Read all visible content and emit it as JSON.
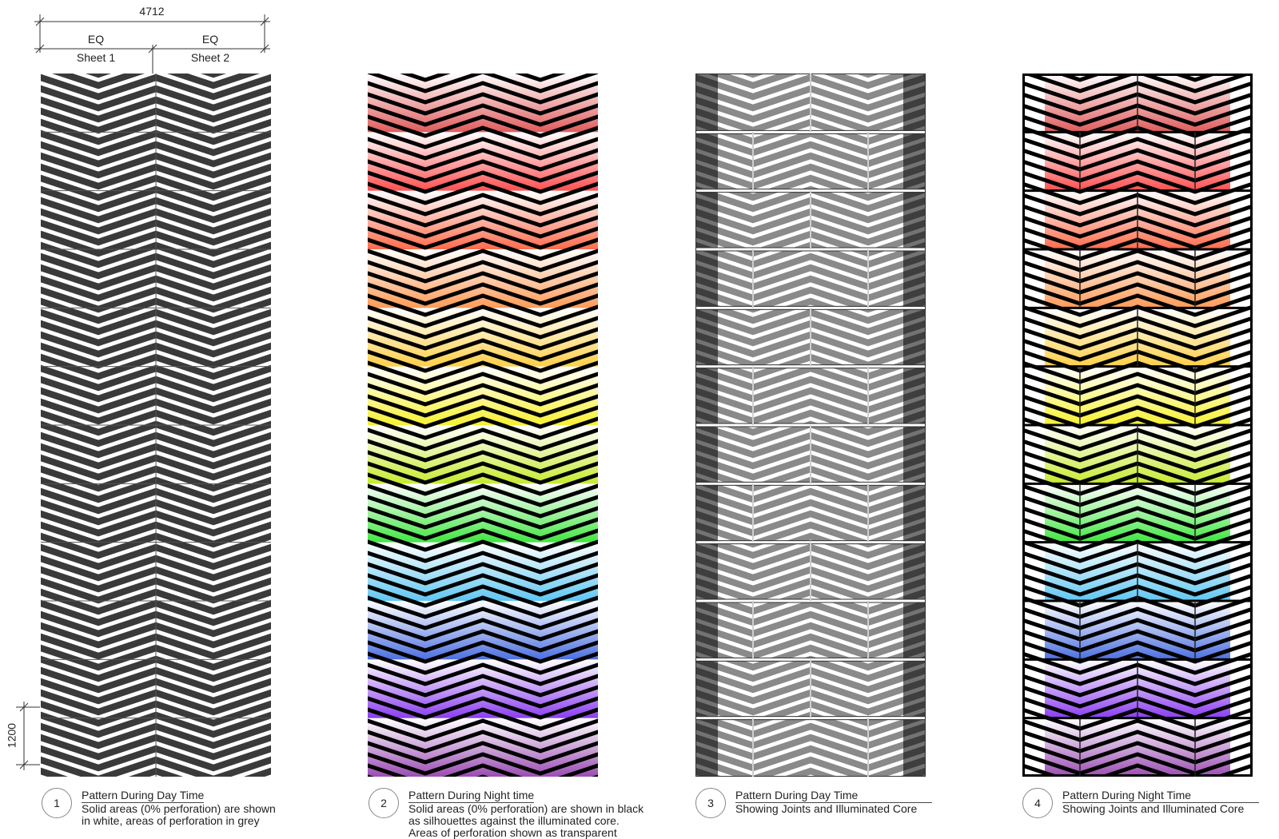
{
  "dimensions": {
    "overall": "4712",
    "eq_left": "EQ",
    "eq_right": "EQ",
    "sheet1": "Sheet 1",
    "sheet2": "Sheet 2",
    "module_height": "1200"
  },
  "panels": [
    {
      "number": "1",
      "title": "Pattern During Day Time",
      "lines": [
        "Solid areas (0% perforation) are shown",
        "in white, areas of perforation in grey"
      ]
    },
    {
      "number": "2",
      "title": "Pattern During Night time",
      "lines": [
        "Solid areas (0% perforation) are shown in black",
        "as silhouettes against the illuminated core.",
        "Areas of perforation shown as transparent"
      ]
    },
    {
      "number": "3",
      "title": "Pattern During Day Time",
      "lines": [
        "Showing Joints and Illuminated Core"
      ]
    },
    {
      "number": "4",
      "title": "Pattern During Night Time",
      "lines": [
        "Showing Joints and Illuminated Core"
      ]
    }
  ],
  "colors": {
    "day_background": "#3a3a3a",
    "day_grey": "#8a8a8a",
    "night_bands": [
      "#e05a5a",
      "#ff4f4f",
      "#ff6a4a",
      "#ff9a55",
      "#ffcf45",
      "#f7f030",
      "#c6ea2e",
      "#3fe63f",
      "#5ec6f2",
      "#4a6fe0",
      "#8a3bf0",
      "#9a4bb2"
    ]
  },
  "layout": {
    "modules": 12
  }
}
